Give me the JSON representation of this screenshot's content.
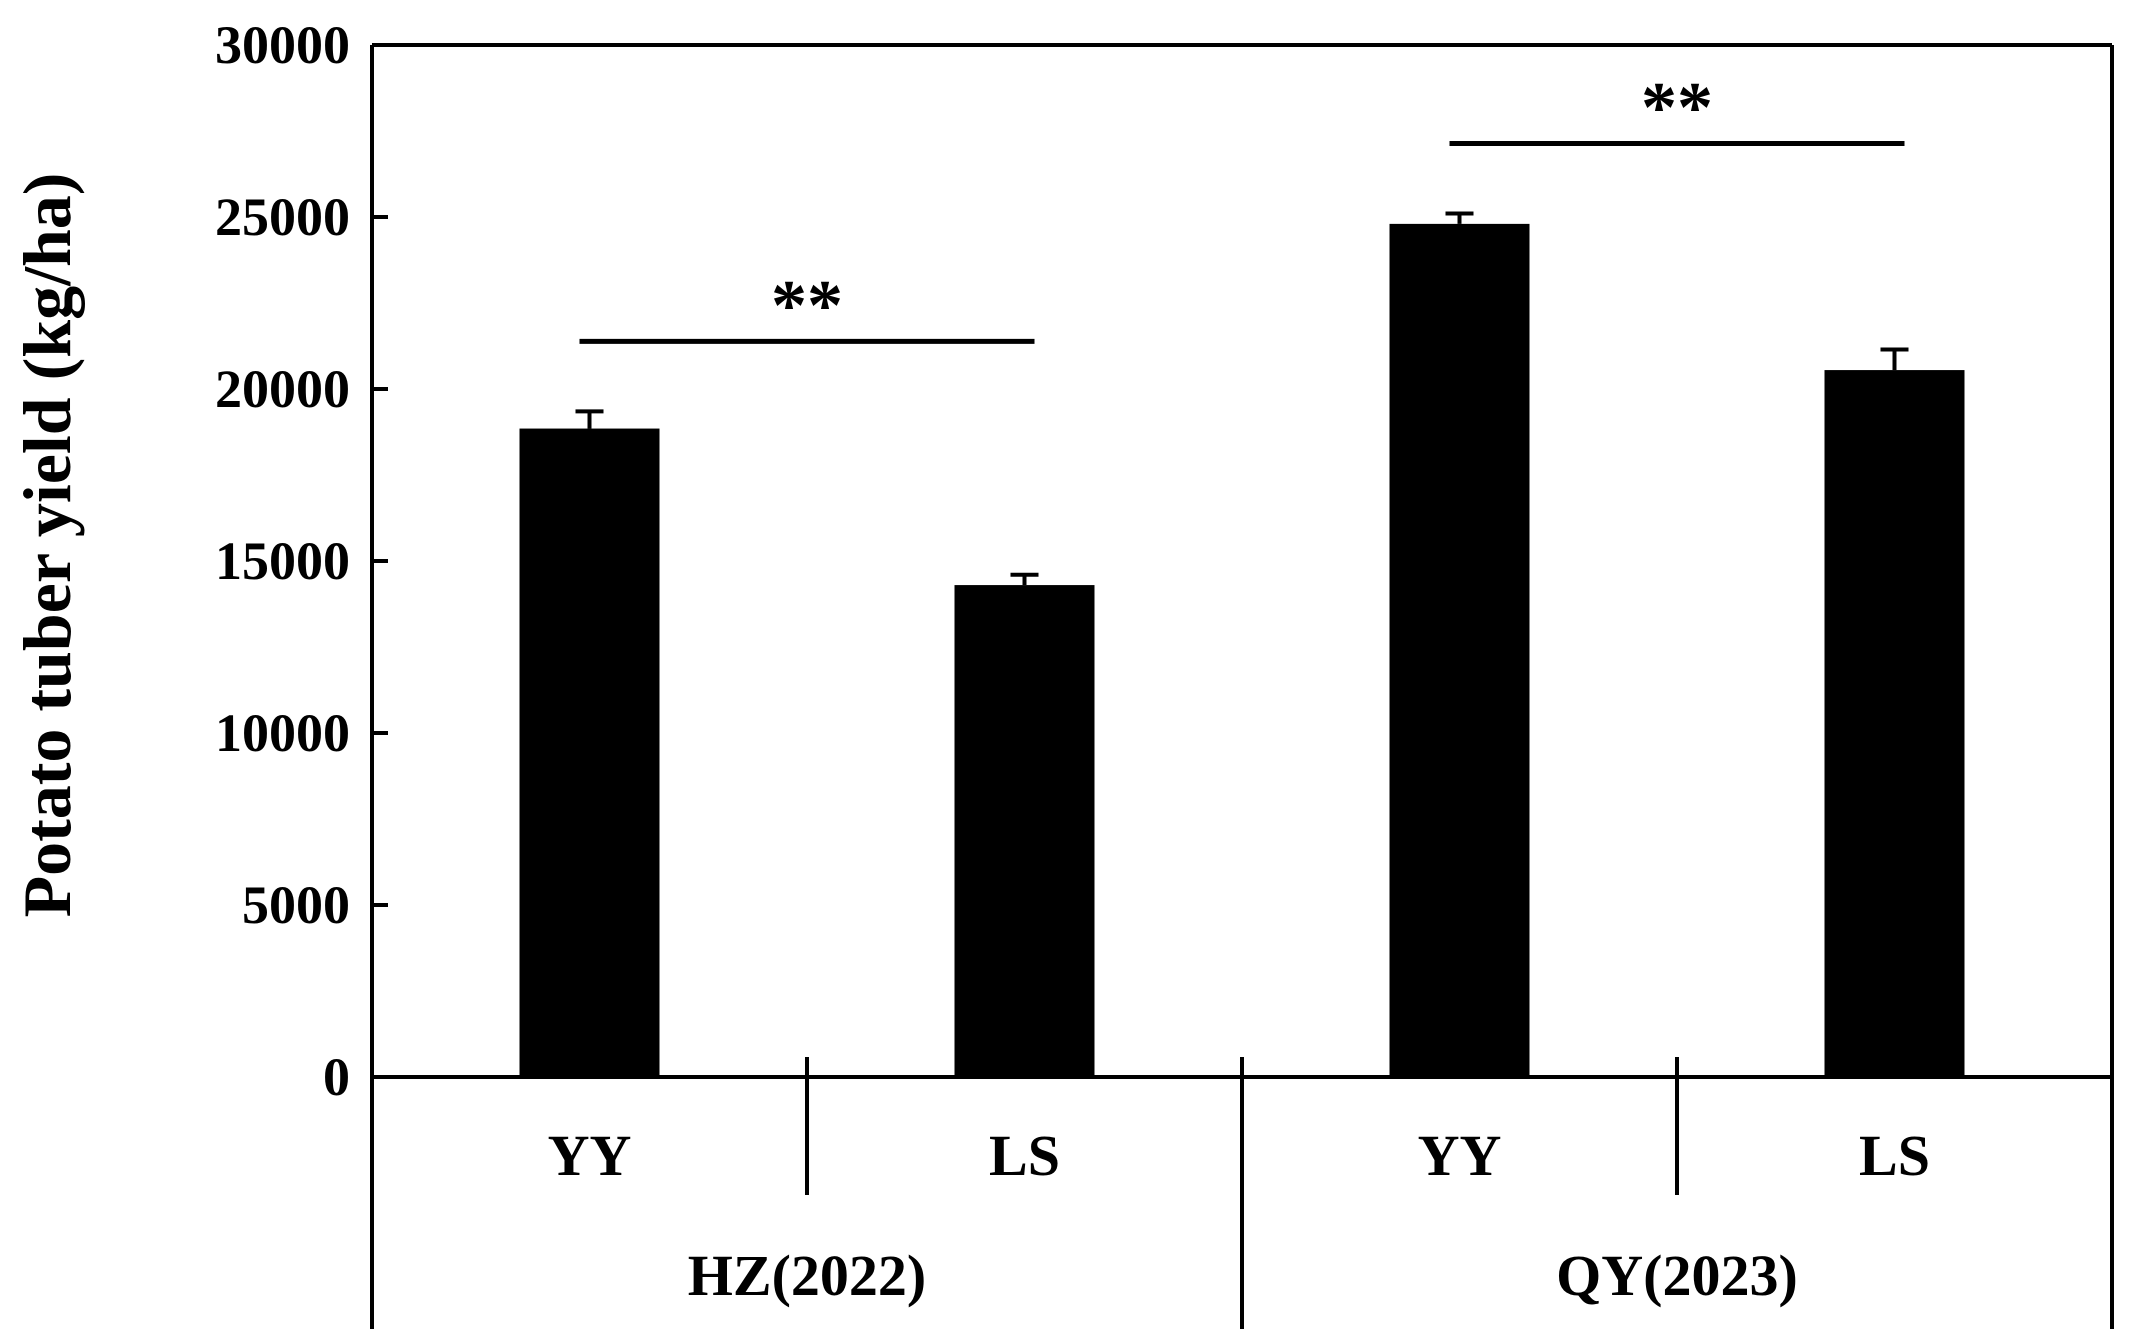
{
  "chart_data": {
    "type": "bar",
    "ylabel": "Potato tuber yield (kg/ha)",
    "ylim": [
      0,
      30000
    ],
    "yticks": [
      "0",
      "5000",
      "10000",
      "15000",
      "20000",
      "25000",
      "30000"
    ],
    "grid": false,
    "bar_color": "#000000",
    "groups": [
      {
        "label": "HZ(2022)",
        "significance": "**",
        "bars": [
          {
            "category": "YY",
            "value": 18850,
            "error": 500
          },
          {
            "category": "LS",
            "value": 14300,
            "error": 300
          }
        ]
      },
      {
        "label": "QY(2023)",
        "significance": "**",
        "bars": [
          {
            "category": "YY",
            "value": 24800,
            "error": 300
          },
          {
            "category": "LS",
            "value": 20550,
            "error": 600
          }
        ]
      }
    ]
  }
}
